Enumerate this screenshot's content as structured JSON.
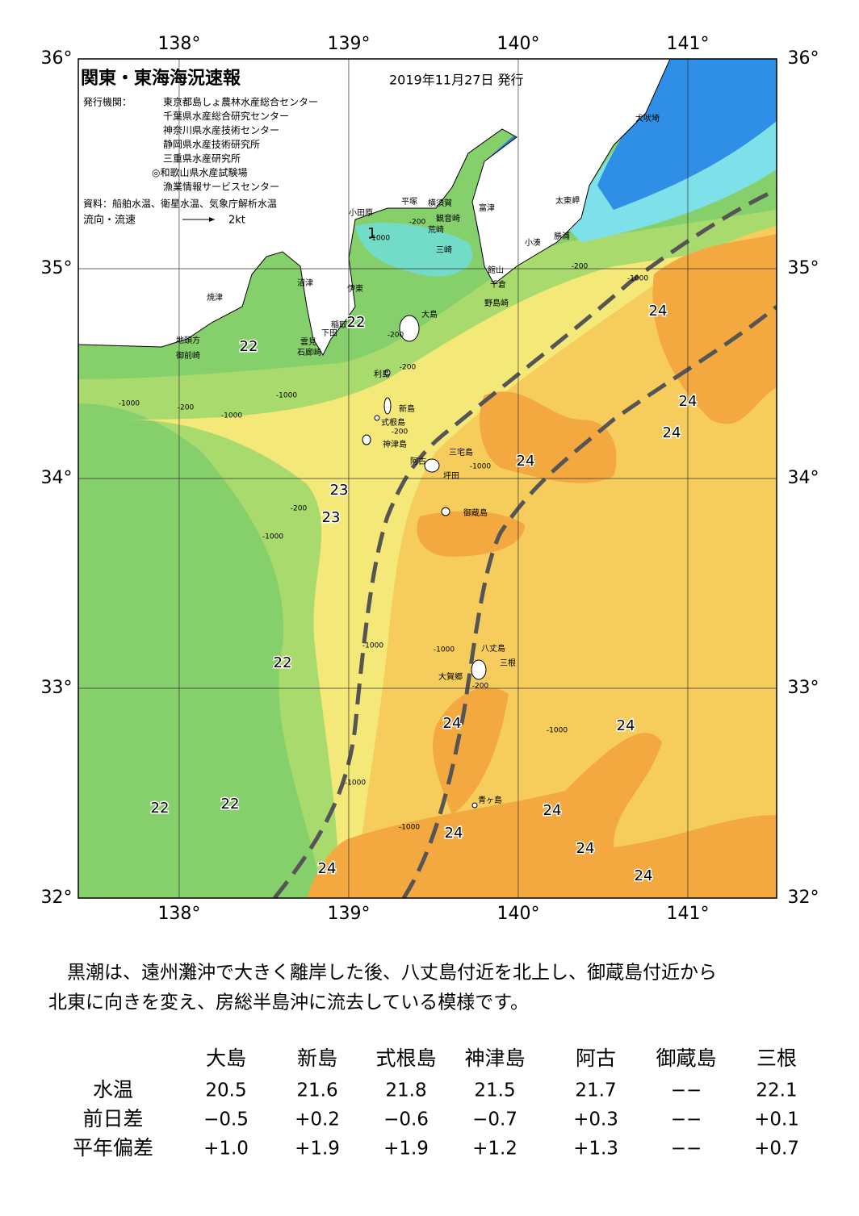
{
  "header": {
    "title": "関東・東海海況速報",
    "date": "2019年11月27日 発行"
  },
  "issuers": {
    "label": "発行機関：",
    "names": [
      "東京都島しょ農林水産総合センター",
      "千葉県水産総合研究センター",
      "神奈川県水産技術センター",
      "静岡県水産技術研究所",
      "三重県水産研究所",
      "◎和歌山県水産試験場",
      "漁業情報サービスセンター"
    ]
  },
  "source": "資料：船舶水温、衛星水温、気象庁解析水温",
  "legend": {
    "label": "流向・流速",
    "speed": "2kt"
  },
  "map": {
    "lonlim": [
      137.405,
      141.524
    ],
    "latlim": [
      32,
      36
    ],
    "lon_ticks": [
      {
        "value": 138,
        "label": "138°"
      },
      {
        "value": 139,
        "label": "139°"
      },
      {
        "value": 140,
        "label": "140°"
      },
      {
        "value": 141,
        "label": "141°"
      }
    ],
    "lat_ticks": [
      {
        "value": 36,
        "label": "36°"
      },
      {
        "value": 35,
        "label": "35°"
      },
      {
        "value": 34,
        "label": "34°"
      },
      {
        "value": 33,
        "label": "33°"
      },
      {
        "value": 32,
        "label": "32°"
      }
    ],
    "station_mark": "1",
    "places": [
      "犬吠埼",
      "太東岬",
      "勝浦",
      "小湊",
      "館山",
      "千倉",
      "野島崎",
      "富津",
      "横須賀",
      "観音崎",
      "荒崎",
      "三崎",
      "平塚",
      "小田原",
      "沼津",
      "伊東",
      "焼津",
      "稲取",
      "下田",
      "雲見",
      "石廊崎",
      "地頭方",
      "御前崎",
      "大島",
      "利島",
      "新島",
      "式根島",
      "神津島",
      "三宅島",
      "阿古",
      "坪田",
      "御蔵島",
      "八丈島",
      "三根",
      "大賀郷",
      "青ヶ島"
    ],
    "temp_labels": [
      22,
      22,
      23,
      23,
      22,
      22,
      22,
      24,
      24,
      24,
      24,
      24,
      24,
      24,
      24,
      24,
      24,
      24
    ],
    "depth_labels": [
      -200,
      -1000,
      -200,
      -200,
      -1000,
      -1000,
      -200,
      -1000,
      -200,
      -1000,
      -200,
      -1000,
      -1000,
      -1000,
      -200,
      -1000,
      -1000,
      -1000,
      -200,
      -1000
    ]
  },
  "description": [
    "　黒潮は、遠州灘沖で大きく離岸した後、八丈島付近を北上し、御蔵島付近から",
    "北東に向きを変え、房総半島沖に流去している模様です。"
  ],
  "table": {
    "columns": [
      "大島",
      "新島",
      "式根島",
      "神津島",
      "阿古",
      "御蔵島",
      "三根"
    ],
    "rows": [
      {
        "label": "水温",
        "cells": [
          "20.5",
          "21.6",
          "21.8",
          "21.5",
          "21.7",
          "−−",
          "22.1"
        ]
      },
      {
        "label": "前日差",
        "cells": [
          "−0.5",
          "+0.2",
          "−0.6",
          "−0.7",
          "+0.3",
          "−−",
          "+0.1"
        ]
      },
      {
        "label": "平年偏差",
        "cells": [
          "+1.0",
          "+1.9",
          "+1.9",
          "+1.2",
          "+1.3",
          "−−",
          "+0.7"
        ]
      }
    ]
  }
}
